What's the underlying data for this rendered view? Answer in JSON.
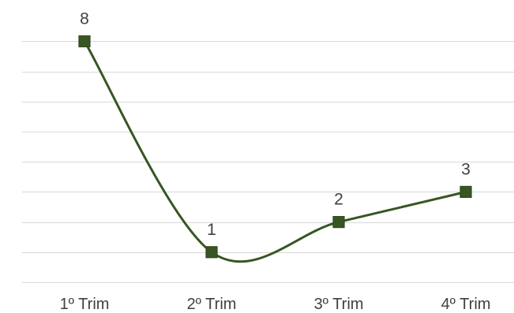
{
  "chart_data": {
    "type": "line",
    "title": "",
    "xlabel": "",
    "ylabel": "",
    "categories": [
      "1º Trim",
      "2º Trim",
      "3º Trim",
      "4º Trim"
    ],
    "series": [
      {
        "values": [
          8,
          1,
          2,
          3
        ]
      }
    ],
    "ylim": [
      0,
      8.9
    ],
    "ymajor": 1,
    "grid": true,
    "legend": "none",
    "smooth": true,
    "marker": "square",
    "data_labels": true,
    "colors": {
      "line": "#375623",
      "marker_fill": "#375623",
      "marker_stroke": "#2f4a1d",
      "grid": "#d9d9d9",
      "text": "#404040"
    }
  }
}
